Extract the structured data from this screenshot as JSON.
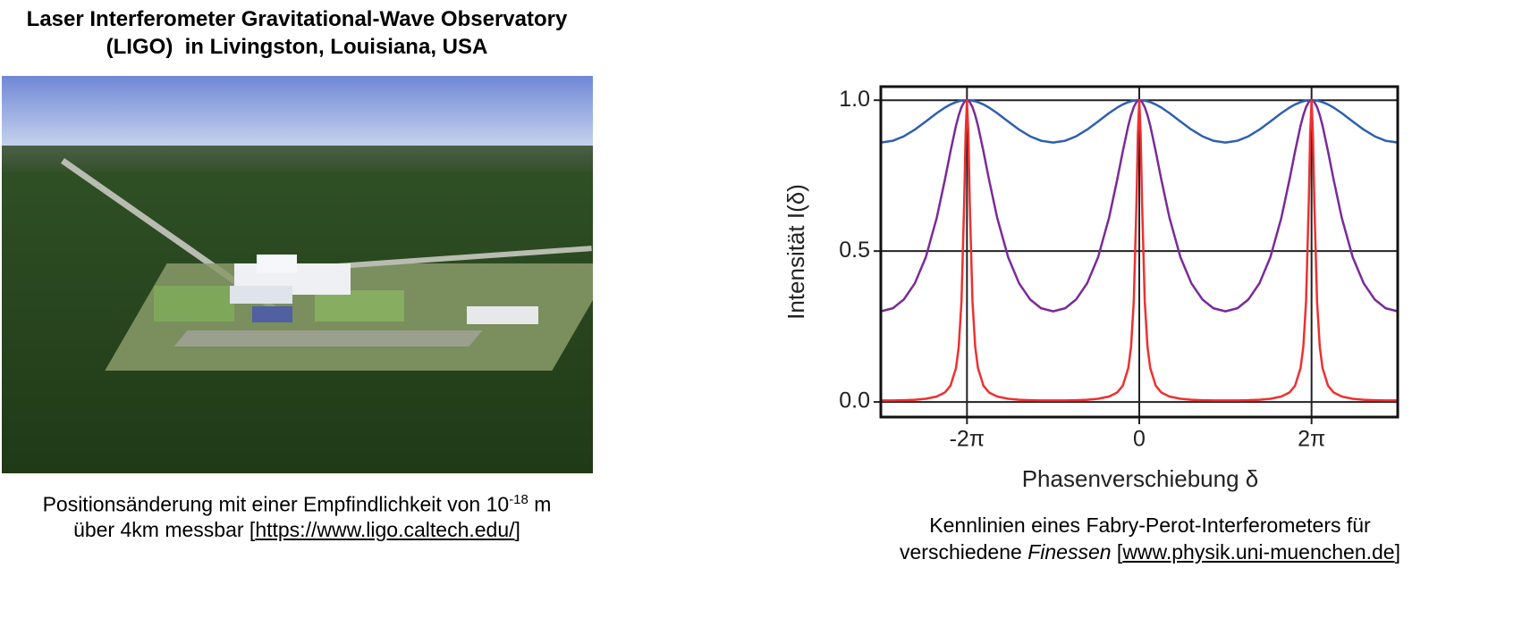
{
  "title": {
    "line1": "Laser Interferometer Gravitational-Wave Observatory",
    "line2": "(LIGO)  in Livingston, Louisiana, USA"
  },
  "left_caption": {
    "text1": "Positionsänderung mit einer Empfindlichkeit von 10",
    "sup": "-18",
    "text2": " m",
    "line2_text": "über 4km messbar [",
    "link": "https://www.ligo.caltech.edu/",
    "close": "]"
  },
  "right_caption": {
    "line1": "Kennlinien eines Fabry-Perot-Interferometers für",
    "text1": "verschiedene ",
    "italic": "Finessen",
    "text2": " [",
    "link": "www.physik.uni-muenchen.de",
    "close": "]"
  },
  "chart_data": {
    "type": "line",
    "xlabel": "Phasenverschiebung δ",
    "ylabel": "Intensität I(δ)",
    "xlim": [
      -9.4248,
      9.4248
    ],
    "ylim": [
      -0.05,
      1.045
    ],
    "xticks": [
      {
        "value": -6.2832,
        "label": "-2π"
      },
      0,
      {
        "value": 6.2832,
        "label": "2π"
      }
    ],
    "yticks": [
      {
        "value": 0,
        "label": "0.0"
      },
      0.5,
      {
        "value": 1,
        "label": "1.0"
      }
    ],
    "grid": true,
    "x": [
      -9.4248,
      -8.9832,
      -8.5832,
      -8.1832,
      -7.7832,
      -7.3832,
      -7.0832,
      -6.8832,
      -6.6832,
      -6.5832,
      -6.4832,
      -6.3832,
      -6.3332,
      -6.2832,
      -6.2332,
      -6.1832,
      -6.0832,
      -5.9832,
      -5.8832,
      -5.6832,
      -5.4832,
      -5.1832,
      -4.7832,
      -4.3832,
      -3.9832,
      -3.5832,
      -3.1416,
      -2.7,
      -2.3,
      -1.9,
      -1.5,
      -1.1,
      -0.8,
      -0.6,
      -0.4,
      -0.3,
      -0.2,
      -0.1,
      -0.05,
      0,
      0.05,
      0.1,
      0.2,
      0.3,
      0.4,
      0.6,
      0.8,
      1.1,
      1.5,
      1.9,
      2.3,
      2.7,
      3.1416,
      3.5832,
      3.9832,
      4.3832,
      4.7832,
      5.1832,
      5.4832,
      5.6832,
      5.8832,
      5.9832,
      6.0832,
      6.1832,
      6.2332,
      6.2832,
      6.3332,
      6.3832,
      6.4832,
      6.5832,
      6.6832,
      6.8832,
      7.0832,
      7.3832,
      7.7832,
      8.1832,
      8.5832,
      8.9832,
      9.4248
    ],
    "series": [
      {
        "color": "#2f5fb0",
        "values": [
          0.8598,
          0.8657,
          0.8804,
          0.9026,
          0.9296,
          0.9574,
          0.9759,
          0.986,
          0.9936,
          0.9964,
          0.9984,
          0.9996,
          0.9999,
          1,
          0.9999,
          0.9996,
          0.9984,
          0.9964,
          0.9936,
          0.986,
          0.9759,
          0.9574,
          0.9296,
          0.9026,
          0.8804,
          0.8657,
          0.8598,
          0.8657,
          0.8804,
          0.9026,
          0.9296,
          0.9574,
          0.9759,
          0.986,
          0.9936,
          0.9964,
          0.9984,
          0.9996,
          0.9999,
          1,
          0.9999,
          0.9996,
          0.9984,
          0.9964,
          0.9936,
          0.986,
          0.9759,
          0.9574,
          0.9296,
          0.9026,
          0.8804,
          0.8657,
          0.8598,
          0.8657,
          0.8804,
          0.9026,
          0.9296,
          0.9574,
          0.9759,
          0.986,
          0.9936,
          0.9964,
          0.9984,
          0.9996,
          0.9999,
          1,
          0.9999,
          0.9996,
          0.9984,
          0.9964,
          0.9936,
          0.986,
          0.9759,
          0.9574,
          0.9296,
          0.9026,
          0.8804,
          0.8657,
          0.8598
        ]
      },
      {
        "color": "#7a2a9a",
        "values": [
          0.3003,
          0.3107,
          0.34,
          0.3934,
          0.4802,
          0.611,
          0.7389,
          0.8309,
          0.9158,
          0.9505,
          0.9773,
          0.9942,
          0.9985,
          1,
          0.9985,
          0.9942,
          0.9773,
          0.9505,
          0.9158,
          0.8309,
          0.7389,
          0.611,
          0.4802,
          0.3934,
          0.34,
          0.3107,
          0.3003,
          0.3107,
          0.34,
          0.3934,
          0.4802,
          0.611,
          0.7389,
          0.8309,
          0.9158,
          0.9505,
          0.9773,
          0.9942,
          0.9985,
          1,
          0.9985,
          0.9942,
          0.9773,
          0.9505,
          0.9158,
          0.8309,
          0.7389,
          0.611,
          0.4802,
          0.3934,
          0.34,
          0.3107,
          0.3003,
          0.3107,
          0.34,
          0.3934,
          0.4802,
          0.611,
          0.7389,
          0.8309,
          0.9158,
          0.9505,
          0.9773,
          0.9942,
          0.9985,
          1,
          0.9985,
          0.9942,
          0.9773,
          0.9505,
          0.9158,
          0.8309,
          0.7389,
          0.611,
          0.4802,
          0.3934,
          0.34,
          0.3107,
          0.3003
        ]
      },
      {
        "color": "#ee3030",
        "values": [
          0.005,
          0.0052,
          0.006,
          0.0075,
          0.0106,
          0.018,
          0.0319,
          0.0542,
          0.1124,
          0.1829,
          0.3341,
          0.6668,
          0.8889,
          1,
          0.8889,
          0.6668,
          0.3341,
          0.1829,
          0.1124,
          0.0542,
          0.0319,
          0.018,
          0.0106,
          0.0075,
          0.006,
          0.0052,
          0.005,
          0.0052,
          0.006,
          0.0075,
          0.0106,
          0.018,
          0.0319,
          0.0542,
          0.1124,
          0.1829,
          0.3341,
          0.6668,
          0.8889,
          1,
          0.8889,
          0.6668,
          0.3341,
          0.1829,
          0.1124,
          0.0542,
          0.0319,
          0.018,
          0.0106,
          0.0075,
          0.006,
          0.0052,
          0.005,
          0.0052,
          0.006,
          0.0075,
          0.0106,
          0.018,
          0.0319,
          0.0542,
          0.1124,
          0.1829,
          0.3341,
          0.6668,
          0.8889,
          1,
          0.8889,
          0.6668,
          0.3341,
          0.1829,
          0.1124,
          0.0542,
          0.0319,
          0.018,
          0.0106,
          0.0075,
          0.006,
          0.0052,
          0.005
        ]
      }
    ]
  }
}
